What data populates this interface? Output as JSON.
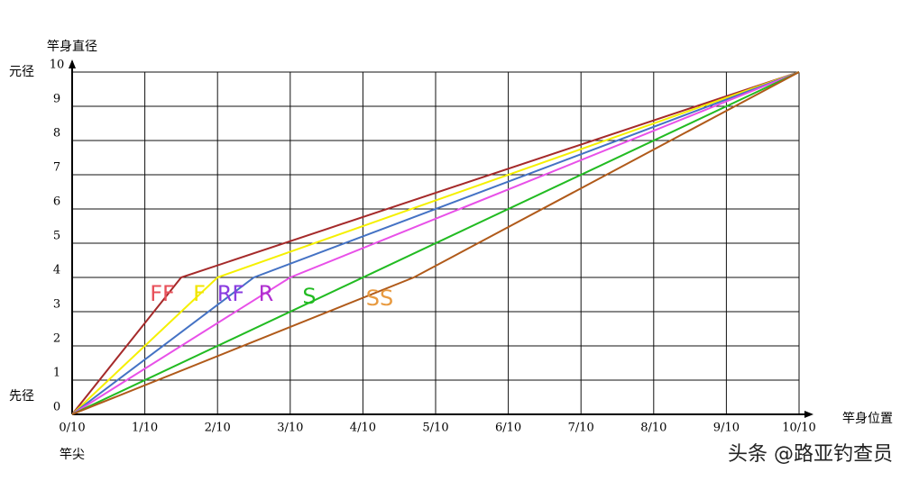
{
  "chart_data": {
    "type": "line",
    "y_label": "竿身直径",
    "x_label": "竿身位置",
    "annotations": [
      "元径",
      "先径",
      "竿尖"
    ],
    "watermark": "头条 @路亚钓查员",
    "xlim": [
      0,
      10
    ],
    "ylim": [
      0,
      10
    ],
    "xticks": [
      {
        "value": 0,
        "label": "0/10"
      },
      {
        "value": 1,
        "label": "1/10"
      },
      {
        "value": 2,
        "label": "2/10"
      },
      {
        "value": 3,
        "label": "3/10"
      },
      {
        "value": 4,
        "label": "4/10"
      },
      {
        "value": 5,
        "label": "5/10"
      },
      {
        "value": 6,
        "label": "6/10"
      },
      {
        "value": 7,
        "label": "7/10"
      },
      {
        "value": 8,
        "label": "8/10"
      },
      {
        "value": 9,
        "label": "9/10"
      },
      {
        "value": 10,
        "label": "10/10"
      }
    ],
    "yticks": [
      0,
      1,
      2,
      3,
      4,
      5,
      6,
      7,
      8,
      9,
      10
    ],
    "grid": true,
    "series": [
      {
        "name": "FF",
        "color": "#a52a2a",
        "label_color": "#e8505a",
        "x": [
          0,
          1.5,
          10
        ],
        "values": [
          0,
          4,
          10
        ]
      },
      {
        "name": "F",
        "color": "#f5f000",
        "label_color": "#f0e400",
        "x": [
          0,
          2,
          10
        ],
        "values": [
          0,
          4,
          10
        ]
      },
      {
        "name": "RF",
        "color": "#4472c4",
        "label_color": "#8a3ce0",
        "x": [
          0,
          2.5,
          10
        ],
        "values": [
          0,
          4,
          10
        ]
      },
      {
        "name": "R",
        "color": "#e850e8",
        "label_color": "#b030d0",
        "x": [
          0,
          3,
          10
        ],
        "values": [
          0,
          4,
          10
        ]
      },
      {
        "name": "S",
        "color": "#22bb22",
        "label_color": "#22bb22",
        "x": [
          0,
          10
        ],
        "values": [
          0,
          10
        ]
      },
      {
        "name": "SS",
        "color": "#b05a1a",
        "label_color": "#e89a40",
        "x": [
          0,
          4.7,
          10
        ],
        "values": [
          0,
          4,
          10
        ]
      }
    ]
  }
}
